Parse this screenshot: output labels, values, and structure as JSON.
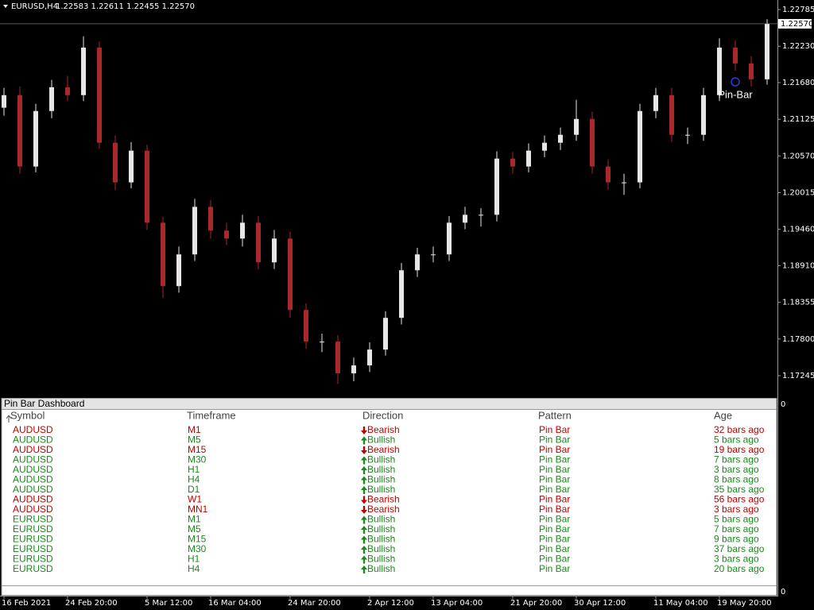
{
  "chart_data": {
    "type": "candlestick",
    "symbol": "EURUSD,H4",
    "info": "1.22583 1.22611 1.22455 1.22570",
    "up_color": "#e6e6e6",
    "down_color": "#a8282c",
    "categories": [
      "16 Feb 2021",
      null,
      null,
      null,
      "24 Feb 20:00",
      null,
      null,
      null,
      null,
      "5 Mar 12:00",
      null,
      null,
      null,
      "16 Mar 04:00",
      null,
      null,
      null,
      null,
      "24 Mar 20:00",
      null,
      null,
      null,
      null,
      "2 Apr 12:00",
      null,
      null,
      null,
      "13 Apr 04:00",
      null,
      null,
      null,
      null,
      "21 Apr 20:00",
      null,
      null,
      null,
      "30 Apr 12:00",
      null,
      null,
      null,
      null,
      "11 May 04:00",
      null,
      null,
      null,
      "19 May 20:00",
      null,
      null,
      null
    ],
    "open": [
      1.213,
      1.2149,
      1.2041,
      1.2125,
      1.2161,
      1.2149,
      1.2221,
      1.2077,
      1.2017,
      1.2065,
      1.1956,
      1.186,
      1.1908,
      1.198,
      1.1944,
      1.1932,
      1.1956,
      1.1896,
      1.1932,
      1.1824,
      1.1776,
      1.1776,
      1.1728,
      1.174,
      1.1764,
      1.1812,
      1.1884,
      1.1908,
      1.1908,
      1.1956,
      1.1968,
      1.1968,
      1.2053,
      1.2041,
      1.2065,
      1.2077,
      1.2089,
      1.2113,
      1.2041,
      1.2017,
      1.2017,
      1.2125,
      1.2149,
      1.2089,
      1.2089,
      1.2149,
      1.2221,
      1.2197,
      1.2173
    ],
    "high": [
      1.216,
      1.2162,
      1.2136,
      1.2172,
      1.2178,
      1.2238,
      1.223,
      1.2088,
      1.2078,
      1.2074,
      1.1965,
      1.192,
      1.1992,
      1.199,
      1.1956,
      1.1968,
      1.1966,
      1.1945,
      1.1942,
      1.1834,
      1.1788,
      1.1786,
      1.1752,
      1.1775,
      1.1822,
      1.1895,
      1.1918,
      1.192,
      1.1966,
      1.198,
      1.1978,
      1.2064,
      1.2063,
      1.2076,
      1.2088,
      1.21,
      1.2142,
      1.2124,
      1.2052,
      1.203,
      1.2136,
      1.216,
      1.216,
      1.21,
      1.216,
      1.2235,
      1.2232,
      1.2208,
      1.2264
    ],
    "low": [
      1.2118,
      1.203,
      1.2032,
      1.2114,
      1.214,
      1.214,
      1.2068,
      1.2005,
      1.2008,
      1.1945,
      1.1842,
      1.185,
      1.1898,
      1.1932,
      1.1922,
      1.192,
      1.1885,
      1.1886,
      1.1812,
      1.1765,
      1.176,
      1.1712,
      1.1716,
      1.173,
      1.1755,
      1.1802,
      1.1874,
      1.1896,
      1.1898,
      1.1946,
      1.195,
      1.1958,
      1.203,
      1.2032,
      1.2055,
      1.2066,
      1.208,
      1.203,
      1.2006,
      1.1998,
      1.2008,
      1.2114,
      1.2078,
      1.2075,
      1.208,
      1.214,
      1.2186,
      1.2162,
      1.2165
    ],
    "close": [
      1.2149,
      1.2041,
      1.2125,
      1.2161,
      1.2149,
      1.2221,
      1.2077,
      1.2017,
      1.2065,
      1.1956,
      1.186,
      1.1908,
      1.198,
      1.1944,
      1.1932,
      1.1956,
      1.1896,
      1.1932,
      1.1824,
      1.1776,
      1.1776,
      1.1728,
      1.174,
      1.1764,
      1.1812,
      1.1884,
      1.1908,
      1.1908,
      1.1956,
      1.1968,
      1.1968,
      1.2053,
      1.2041,
      1.2065,
      1.2077,
      1.2089,
      1.2113,
      1.2041,
      1.2017,
      1.2017,
      1.2125,
      1.2149,
      1.2089,
      1.2089,
      1.2149,
      1.2221,
      1.2197,
      1.2173,
      1.2257
    ],
    "ylim": [
      1.1692,
      1.2293
    ],
    "yticks": [
      1.22785,
      {
        "value": 1.2223,
        "label": "1.22230"
      },
      {
        "value": 1.2168,
        "label": "1.21680"
      },
      1.21125,
      {
        "value": 1.2057,
        "label": "1.20570"
      },
      1.20015,
      {
        "value": 1.1946,
        "label": "1.19460"
      },
      {
        "value": 1.1891,
        "label": "1.18910"
      },
      1.18355,
      {
        "value": 1.178,
        "label": "1.17800"
      },
      1.17245
    ],
    "current_price": {
      "value": 1.2257,
      "label": "1.22570"
    },
    "annotation": "Pin-Bar"
  },
  "dashboard": {
    "title": "Pin Bar Dashboard",
    "scale": [
      0,
      0
    ],
    "columns": [
      "Symbol",
      "Timeframe",
      "Direction",
      "Pattern",
      "Age"
    ],
    "rows": [
      {
        "symbol": "AUDUSD",
        "timeframe": "M1",
        "direction": "Bearish",
        "pattern": "Pin Bar",
        "age": "32 bars ago",
        "color": "#c00000",
        "arrow": "down"
      },
      {
        "symbol": "AUDUSD",
        "timeframe": "M5",
        "direction": "Bullish",
        "pattern": "Pin Bar",
        "age": "5 bars ago",
        "color": "#1a8a1a",
        "arrow": "up"
      },
      {
        "symbol": "AUDUSD",
        "timeframe": "M15",
        "direction": "Bearish",
        "pattern": "Pin Bar",
        "age": "19 bars ago",
        "color": "#c00000",
        "arrow": "down"
      },
      {
        "symbol": "AUDUSD",
        "timeframe": "M30",
        "direction": "Bullish",
        "pattern": "Pin Bar",
        "age": "7 bars ago",
        "color": "#1a8a1a",
        "arrow": "up"
      },
      {
        "symbol": "AUDUSD",
        "timeframe": "H1",
        "direction": "Bullish",
        "pattern": "Pin Bar",
        "age": "3 bars ago",
        "color": "#1a8a1a",
        "arrow": "up"
      },
      {
        "symbol": "AUDUSD",
        "timeframe": "H4",
        "direction": "Bullish",
        "pattern": "Pin Bar",
        "age": "8 bars ago",
        "color": "#1a8a1a",
        "arrow": "up"
      },
      {
        "symbol": "AUDUSD",
        "timeframe": "D1",
        "direction": "Bullish",
        "pattern": "Pin Bar",
        "age": "35 bars ago",
        "color": "#1a8a1a",
        "arrow": "up"
      },
      {
        "symbol": "AUDUSD",
        "timeframe": "W1",
        "direction": "Bearish",
        "pattern": "Pin Bar",
        "age": "56 bars ago",
        "color": "#c00000",
        "arrow": "down"
      },
      {
        "symbol": "AUDUSD",
        "timeframe": "MN1",
        "direction": "Bearish",
        "pattern": "Pin Bar",
        "age": "3 bars ago",
        "color": "#c00000",
        "arrow": "down"
      },
      {
        "symbol": "EURUSD",
        "timeframe": "M1",
        "direction": "Bullish",
        "pattern": "Pin Bar",
        "age": "5 bars ago",
        "color": "#1a8a1a",
        "arrow": "up"
      },
      {
        "symbol": "EURUSD",
        "timeframe": "M5",
        "direction": "Bullish",
        "pattern": "Pin Bar",
        "age": "7 bars ago",
        "color": "#1a8a1a",
        "arrow": "up"
      },
      {
        "symbol": "EURUSD",
        "timeframe": "M15",
        "direction": "Bullish",
        "pattern": "Pin Bar",
        "age": "9 bars ago",
        "color": "#1a8a1a",
        "arrow": "up"
      },
      {
        "symbol": "EURUSD",
        "timeframe": "M30",
        "direction": "Bullish",
        "pattern": "Pin Bar",
        "age": "37 bars ago",
        "color": "#1a8a1a",
        "arrow": "up"
      },
      {
        "symbol": "EURUSD",
        "timeframe": "H1",
        "direction": "Bullish",
        "pattern": "Pin Bar",
        "age": "3 bars ago",
        "color": "#1a8a1a",
        "arrow": "up"
      },
      {
        "symbol": "EURUSD",
        "timeframe": "H4",
        "direction": "Bullish",
        "pattern": "Pin Bar",
        "age": "20 bars ago",
        "color": "#1a8a1a",
        "arrow": "up"
      }
    ]
  }
}
